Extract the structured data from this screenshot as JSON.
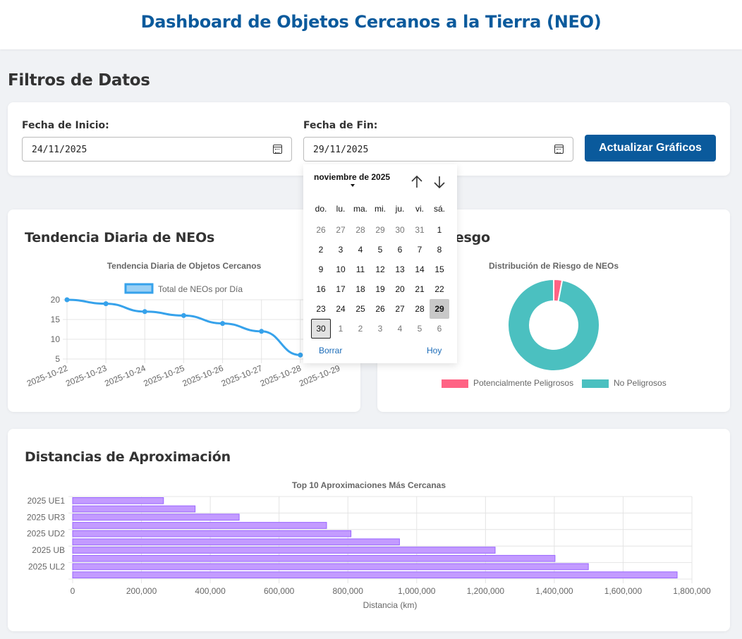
{
  "header": {
    "title": "Dashboard de Objetos Cercanos a la Tierra (NEO)"
  },
  "filters": {
    "section_title": "Filtros de Datos",
    "start_label": "Fecha de Inicio:",
    "start_value": "24/11/2025",
    "end_label": "Fecha de Fin:",
    "end_value": "29/11/2025",
    "update_button": "Actualizar Gráficos"
  },
  "calendar": {
    "month_label": "noviembre de 2025",
    "weekdays": [
      "do.",
      "lu.",
      "ma.",
      "mi.",
      "ju.",
      "vi.",
      "sá."
    ],
    "weeks": [
      [
        "26",
        "27",
        "28",
        "29",
        "30",
        "31",
        "1"
      ],
      [
        "2",
        "3",
        "4",
        "5",
        "6",
        "7",
        "8"
      ],
      [
        "9",
        "10",
        "11",
        "12",
        "13",
        "14",
        "15"
      ],
      [
        "16",
        "17",
        "18",
        "19",
        "20",
        "21",
        "22"
      ],
      [
        "23",
        "24",
        "25",
        "26",
        "27",
        "28",
        "29"
      ],
      [
        "30",
        "1",
        "2",
        "3",
        "4",
        "5",
        "6"
      ]
    ],
    "clear_label": "Borrar",
    "today_label": "Hoy",
    "icons": {
      "prev": "arrow-up-icon",
      "next": "arrow-down-icon"
    }
  },
  "cards": {
    "trend_title": "Tendencia Diaria de NEOs",
    "risk_title": "Distribución de Riesgo",
    "risk_title_visible": "on de Riesgo",
    "distance_title": "Distancias de Aproximación"
  },
  "colors": {
    "header_title": "#0a5a9c",
    "button": "#0a5a9c",
    "line": "#36a2eb",
    "hazardous": "#ff6384",
    "safe": "#4bc0c0",
    "bars": "#c39bff"
  },
  "chart_data": [
    {
      "type": "line",
      "title": "Tendencia Diaria de Objetos Cercanos",
      "categories": [
        "2025-10-22",
        "2025-10-23",
        "2025-10-24",
        "2025-10-25",
        "2025-10-26",
        "2025-10-27",
        "2025-10-28",
        "2025-10-29"
      ],
      "series": [
        {
          "name": "Total de NEOs por Día",
          "values": [
            20,
            19,
            17,
            16,
            14,
            12,
            6,
            null
          ]
        }
      ],
      "yticks": [
        5,
        10,
        15,
        20
      ],
      "ylim": [
        5,
        20
      ],
      "grid": true,
      "legend": "top"
    },
    {
      "type": "pie",
      "title": "Distribución de Riesgo de NEOs",
      "labels": [
        "Potencialmente Peligrosos",
        "No Peligrosos"
      ],
      "values": [
        3,
        97
      ],
      "legend": "bottom"
    },
    {
      "type": "bar",
      "orientation": "horizontal",
      "title": "Top 10 Aproximaciones Más Cercanas",
      "categories": [
        "2025 UE1",
        "",
        "2025 UR3",
        "",
        "2025 UD2",
        "",
        "2025 UB",
        "",
        "2025 UL2",
        ""
      ],
      "values": [
        264000,
        356000,
        484000,
        738000,
        809000,
        950000,
        1228000,
        1402000,
        1499000,
        1757000
      ],
      "xlabel": "Distancia (km)",
      "xticks": [
        "0",
        "200,000",
        "400,000",
        "600,000",
        "800,000",
        "1,000,000",
        "1,200,000",
        "1,400,000",
        "1,600,000",
        "1,800,000"
      ],
      "xlim": [
        0,
        1800000
      ],
      "grid": true
    }
  ]
}
